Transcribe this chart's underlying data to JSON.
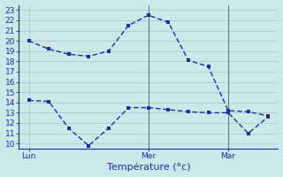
{
  "xlabel": "Température (°c)",
  "bg_color": "#cce8e8",
  "grid_color": "#aacccc",
  "line_color": "#1a2e9e",
  "vline_color": "#667788",
  "x_ticks": [
    0,
    6,
    10
  ],
  "x_tick_labels": [
    "Lun",
    "Mer",
    "Mar"
  ],
  "xlim": [
    -0.5,
    12.5
  ],
  "ylim": [
    9.5,
    23.5
  ],
  "yticks": [
    10,
    11,
    12,
    13,
    14,
    15,
    16,
    17,
    18,
    19,
    20,
    21,
    22,
    23
  ],
  "x_high": [
    0,
    1,
    2,
    3,
    4,
    5,
    6,
    7,
    8,
    9,
    10,
    11,
    12
  ],
  "y_high": [
    20.0,
    19.2,
    18.7,
    18.5,
    19.0,
    21.5,
    22.5,
    21.8,
    18.1,
    17.5,
    13.2,
    13.1,
    12.7
  ],
  "x_low": [
    0,
    1,
    2,
    3,
    4,
    5,
    6,
    7,
    8,
    9,
    10,
    11,
    12
  ],
  "y_low": [
    14.2,
    14.1,
    11.5,
    9.8,
    11.5,
    13.5,
    13.5,
    13.3,
    13.1,
    13.0,
    13.0,
    11.0,
    12.6
  ],
  "vline_x": [
    6,
    10
  ],
  "marker_size": 2.5,
  "lw": 1.0,
  "xlabel_fontsize": 8,
  "tick_fontsize": 6.5
}
